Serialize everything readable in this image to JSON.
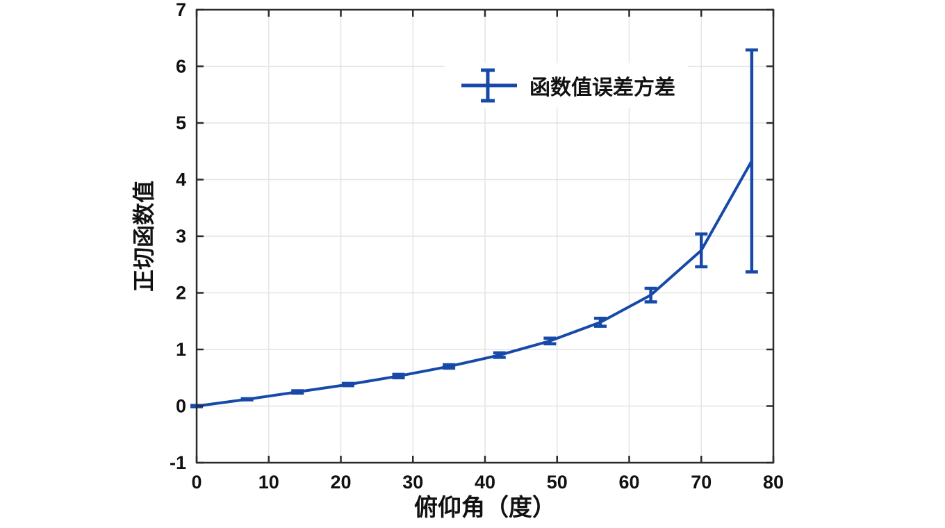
{
  "figure": {
    "background": "#ffffff"
  },
  "chart_data": {
    "type": "line",
    "title": "",
    "xlabel": "俯仰角（度）",
    "ylabel": "正切函数值",
    "x": [
      0,
      7,
      14,
      21,
      28,
      35,
      42,
      49,
      56,
      63,
      70,
      77
    ],
    "series": [
      {
        "name": "函数值误差方差",
        "values": [
          0,
          0.12,
          0.25,
          0.38,
          0.53,
          0.7,
          0.9,
          1.15,
          1.48,
          1.96,
          2.75,
          4.33
        ],
        "yerr": [
          0.01,
          0.01,
          0.02,
          0.02,
          0.03,
          0.03,
          0.04,
          0.05,
          0.07,
          0.12,
          0.29,
          1.96
        ],
        "color": "#1649a8"
      }
    ],
    "xlim": [
      0,
      80
    ],
    "ylim": [
      -1,
      7
    ],
    "xticks": [
      0,
      10,
      20,
      30,
      40,
      50,
      60,
      70,
      80
    ],
    "yticks": [
      -1,
      0,
      1,
      2,
      3,
      4,
      5,
      6,
      7
    ],
    "grid": true,
    "grid_color": "#e4e4e4",
    "axis_color": "#2b2b2b",
    "tick_label_color": "#111111",
    "legend": {
      "label": "函数值误差方差",
      "position": "upper-center",
      "background": "#ffffff"
    }
  }
}
